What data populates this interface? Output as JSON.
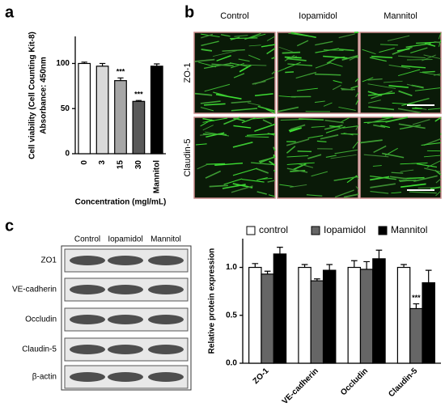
{
  "panels": [
    "a",
    "b",
    "c"
  ],
  "microscopy": {
    "columns": [
      "Control",
      "Iopamidol",
      "Mannitol"
    ],
    "rows": [
      "ZO-1",
      "Claudin-5"
    ]
  },
  "western_blot": {
    "columns": [
      "Control",
      "Iopamidol",
      "Mannitol"
    ],
    "rows": [
      "ZO1",
      "VE-cadherin",
      "Occludin",
      "Claudin-5",
      "β-actin"
    ]
  },
  "chart_data": [
    {
      "type": "bar",
      "ylabel": [
        "Cell viability (Cell Counting Kit-8)",
        "Absorbance: 450nm"
      ],
      "xlabel": "Concentration (mgl/mL)",
      "categories": [
        "0",
        "3",
        "15",
        "30",
        "Mannitol"
      ],
      "values": [
        100,
        97,
        81,
        58,
        97
      ],
      "errors": [
        1.5,
        3,
        3,
        1,
        2.5
      ],
      "colors": [
        "#ffffff",
        "#d9d9d9",
        "#a6a6a6",
        "#595959",
        "#000000"
      ],
      "annotations": [
        {
          "text": "***",
          "category": "15"
        },
        {
          "text": "***",
          "category": "30"
        }
      ],
      "ylim": [
        0,
        130
      ],
      "yticks": [
        0,
        50,
        100
      ]
    },
    {
      "type": "bar",
      "ylabel": "Relative protein expression",
      "categories": [
        "ZO-1",
        "VE-cadherin",
        "Occludin",
        "Claudin-5"
      ],
      "series": [
        {
          "name": "control",
          "color": "#ffffff",
          "values": [
            1.0,
            1.0,
            1.0,
            1.0
          ],
          "errors": [
            0.04,
            0.03,
            0.07,
            0.03
          ]
        },
        {
          "name": "Iopamidol",
          "color": "#666666",
          "values": [
            0.93,
            0.86,
            0.98,
            0.57
          ],
          "errors": [
            0.03,
            0.02,
            0.08,
            0.05
          ]
        },
        {
          "name": "Mannitol",
          "color": "#000000",
          "values": [
            1.14,
            0.97,
            1.09,
            0.84
          ],
          "errors": [
            0.07,
            0.06,
            0.09,
            0.13
          ]
        }
      ],
      "annotations": [
        {
          "text": "***",
          "category": "Claudin-5",
          "series": "Iopamidol"
        }
      ],
      "ylim": [
        0,
        1.3
      ],
      "yticks": [
        {
          "value": 0,
          "label": "0.0"
        },
        0.5,
        {
          "value": 1,
          "label": "1.0"
        }
      ]
    }
  ]
}
